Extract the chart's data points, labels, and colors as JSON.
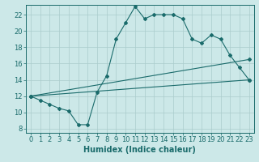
{
  "xlabel": "Humidex (Indice chaleur)",
  "ylabel": "",
  "bg_color": "#cce8e8",
  "line_color": "#1a6b6b",
  "grid_color": "#aacccc",
  "xlim": [
    -0.5,
    23.5
  ],
  "ylim": [
    7.5,
    23.2
  ],
  "xticks": [
    0,
    1,
    2,
    3,
    4,
    5,
    6,
    7,
    8,
    9,
    10,
    11,
    12,
    13,
    14,
    15,
    16,
    17,
    18,
    19,
    20,
    21,
    22,
    23
  ],
  "yticks": [
    8,
    10,
    12,
    14,
    16,
    18,
    20,
    22
  ],
  "curve1_x": [
    0,
    1,
    2,
    3,
    4,
    5,
    6,
    7,
    8,
    9,
    10,
    11,
    12,
    13,
    14,
    15,
    16,
    17,
    18,
    19,
    20,
    21,
    22,
    23
  ],
  "curve1_y": [
    12.0,
    11.5,
    11.0,
    10.5,
    10.2,
    8.5,
    8.5,
    12.5,
    14.5,
    19.0,
    21.0,
    23.0,
    21.5,
    22.0,
    22.0,
    22.0,
    21.5,
    19.0,
    18.5,
    19.5,
    19.0,
    17.0,
    15.5,
    14.0
  ],
  "curve2_x": [
    0,
    23
  ],
  "curve2_y": [
    12.0,
    16.5
  ],
  "curve3_x": [
    0,
    23
  ],
  "curve3_y": [
    12.0,
    14.0
  ],
  "title_fontsize": 8,
  "label_fontsize": 7,
  "tick_fontsize": 6,
  "linewidth": 0.8,
  "markersize": 2.0
}
